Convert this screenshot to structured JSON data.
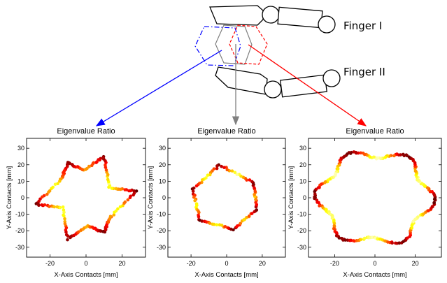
{
  "diagram": {
    "finger_labels": [
      "Finger I",
      "Finger II"
    ],
    "arrow_colors": [
      "#0000ff",
      "#808080",
      "#ff0000"
    ],
    "hexagon_colors": [
      "#0000ff",
      "#808080",
      "#ff0000"
    ]
  },
  "chart_data": [
    {
      "type": "scatter",
      "title": "Eigenvalue Ratio",
      "xlabel": "X-Axis Contacts [mm]",
      "ylabel": "Y-Axis Contacts [mm]",
      "xlim": [
        -33,
        33
      ],
      "ylim": [
        -36,
        36
      ],
      "xticks": [
        -20,
        0,
        20
      ],
      "yticks": [
        -30,
        -20,
        -10,
        0,
        10,
        20,
        30
      ],
      "colormap": "hot",
      "shape": "six-pointed star",
      "star_vertices": [
        [
          28,
          4
        ],
        [
          10,
          25
        ],
        [
          -10,
          21
        ],
        [
          -28,
          -4
        ],
        [
          -10,
          -25
        ],
        [
          10,
          -21
        ]
      ],
      "star_concave_vertices": [
        [
          13,
          6
        ],
        [
          -1,
          17
        ],
        [
          -14,
          11
        ],
        [
          -13,
          -6
        ],
        [
          1,
          -17
        ],
        [
          14,
          -11
        ]
      ]
    },
    {
      "type": "scatter",
      "title": "Eigenvalue Ratio",
      "xlabel": "X-Axis Contacts [mm]",
      "ylabel": "Y-Axis Contacts [mm]",
      "xlim": [
        -33,
        33
      ],
      "ylim": [
        -36,
        36
      ],
      "xticks": [
        -20,
        0,
        20
      ],
      "yticks": [
        -30,
        -20,
        -10,
        0,
        10,
        20,
        30
      ],
      "colormap": "hot",
      "shape": "hexagon",
      "hexagon_vertices": [
        [
          -4,
          20
        ],
        [
          -19,
          5
        ],
        [
          -15,
          -14
        ],
        [
          4,
          -19
        ],
        [
          17,
          -7
        ],
        [
          15,
          9
        ]
      ]
    },
    {
      "type": "scatter",
      "title": "Eigenvalue Ratio",
      "xlabel": "X-Axis Contacts [mm]",
      "ylabel": "Y-Axis Contacts [mm]",
      "xlim": [
        -33,
        33
      ],
      "ylim": [
        -36,
        36
      ],
      "xticks": [
        -20,
        0,
        20
      ],
      "yticks": [
        -30,
        -20,
        -10,
        0,
        10,
        20,
        30
      ],
      "colormap": "hot",
      "shape": "wavy ring",
      "ring_radius_mean": 27,
      "ring_radius_amplitude": 3,
      "ring_lobes": 6
    }
  ]
}
